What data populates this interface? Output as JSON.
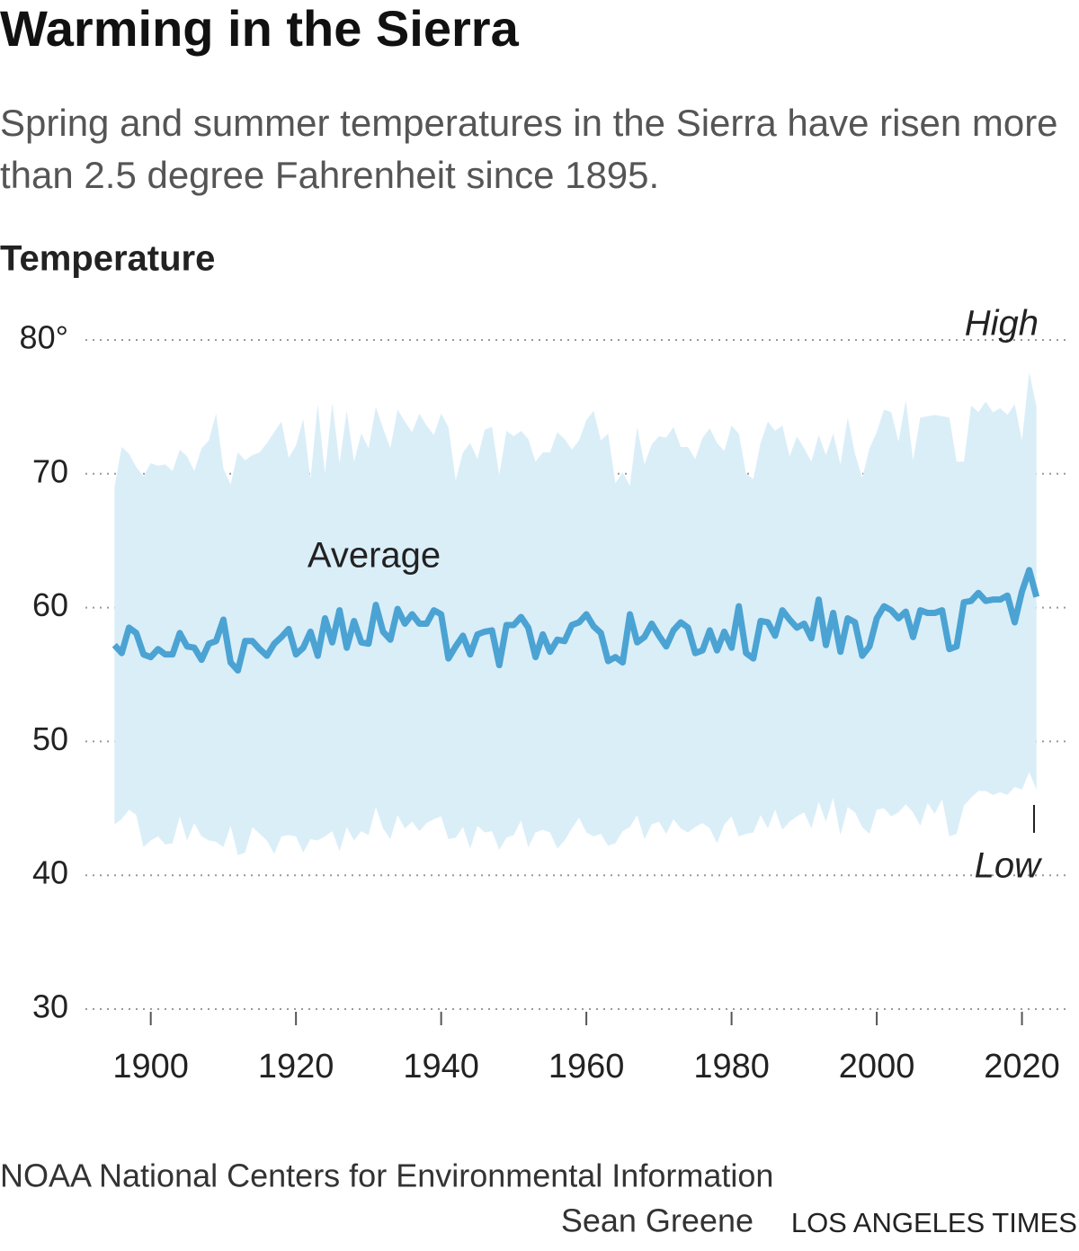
{
  "chart_data": {
    "type": "band-line",
    "title": "Warming in the Sierra",
    "subtitle": "Spring and summer temperatures in the Sierra have risen more than 2.5 degree Fahrenheit since 1895.",
    "y_label": "Temperature",
    "source": "NOAA National Centers for Environmental Information",
    "credit": "Sean Greene",
    "publisher": "LOS ANGELES TIMES",
    "annotation": "Average",
    "band_color": "#daeef8",
    "grid": true,
    "xlim": [
      1891,
      2026
    ],
    "xticks": [
      1900,
      1920,
      1940,
      1960,
      1980,
      2000,
      2020
    ],
    "ylim": [
      30,
      80
    ],
    "yticks": [
      {
        "value": 80,
        "label": "80°"
      },
      70,
      60,
      50,
      40,
      30
    ],
    "x": [
      1895,
      1896,
      1897,
      1898,
      1899,
      1900,
      1901,
      1902,
      1903,
      1904,
      1905,
      1906,
      1907,
      1908,
      1909,
      1910,
      1911,
      1912,
      1913,
      1914,
      1915,
      1916,
      1917,
      1918,
      1919,
      1920,
      1921,
      1922,
      1923,
      1924,
      1925,
      1926,
      1927,
      1928,
      1929,
      1930,
      1931,
      1932,
      1933,
      1934,
      1935,
      1936,
      1937,
      1938,
      1939,
      1940,
      1941,
      1942,
      1943,
      1944,
      1945,
      1946,
      1947,
      1948,
      1949,
      1950,
      1951,
      1952,
      1953,
      1954,
      1955,
      1956,
      1957,
      1958,
      1959,
      1960,
      1961,
      1962,
      1963,
      1964,
      1965,
      1966,
      1967,
      1968,
      1969,
      1970,
      1971,
      1972,
      1973,
      1974,
      1975,
      1976,
      1977,
      1978,
      1979,
      1980,
      1981,
      1982,
      1983,
      1984,
      1985,
      1986,
      1987,
      1988,
      1989,
      1990,
      1991,
      1992,
      1993,
      1994,
      1995,
      1996,
      1997,
      1998,
      1999,
      2000,
      2001,
      2002,
      2003,
      2004,
      2005,
      2006,
      2007,
      2008,
      2009,
      2010,
      2011,
      2012,
      2013,
      2014,
      2015,
      2016,
      2017,
      2018,
      2019,
      2020,
      2021,
      2022
    ],
    "series": [
      {
        "name": "High",
        "color": "#daeef8",
        "values": [
          69.0,
          72.0,
          71.5,
          70.5,
          69.8,
          70.8,
          70.6,
          70.7,
          70.2,
          71.8,
          71.3,
          70.2,
          71.9,
          72.5,
          74.5,
          70.4,
          69.2,
          71.6,
          71.0,
          71.4,
          71.6,
          72.3,
          73.1,
          73.9,
          71.2,
          72.1,
          74.1,
          69.6,
          75.2,
          70.0,
          75.3,
          70.8,
          74.7,
          70.9,
          73.0,
          71.9,
          75.0,
          73.4,
          71.9,
          74.8,
          73.9,
          73.1,
          74.5,
          73.6,
          72.9,
          74.5,
          73.5,
          69.5,
          71.6,
          72.3,
          71.1,
          73.3,
          73.5,
          69.9,
          73.2,
          72.8,
          73.2,
          72.6,
          70.9,
          71.6,
          71.6,
          73.1,
          72.6,
          71.8,
          72.5,
          74.0,
          74.7,
          72.5,
          73.0,
          69.3,
          70.1,
          69.1,
          73.5,
          70.7,
          72.2,
          72.8,
          72.7,
          73.5,
          72.0,
          72.0,
          71.1,
          72.7,
          73.4,
          72.3,
          71.7,
          73.6,
          73.0,
          70.0,
          69.6,
          72.3,
          73.9,
          73.2,
          73.6,
          71.3,
          72.8,
          71.9,
          70.9,
          72.9,
          71.4,
          73.0,
          70.7,
          74.2,
          71.5,
          69.7,
          71.9,
          73.1,
          74.8,
          74.6,
          72.4,
          75.5,
          71.0,
          74.2,
          74.3,
          74.4,
          74.3,
          74.2,
          70.9,
          70.9,
          75.1,
          74.6,
          75.4,
          74.6,
          74.9,
          74.4,
          75.2,
          72.5,
          77.6,
          75.0
        ]
      },
      {
        "name": "Average",
        "color": "#4ba3d3",
        "values": [
          57.2,
          56.6,
          58.5,
          58.1,
          56.5,
          56.3,
          56.9,
          56.5,
          56.5,
          58.1,
          57.1,
          57.0,
          56.1,
          57.3,
          57.5,
          59.1,
          55.9,
          55.3,
          57.5,
          57.5,
          56.9,
          56.4,
          57.3,
          57.8,
          58.4,
          56.5,
          57.0,
          58.2,
          56.4,
          59.2,
          57.4,
          59.8,
          57.0,
          59.0,
          57.4,
          57.3,
          60.2,
          58.2,
          57.6,
          59.9,
          58.8,
          59.5,
          58.8,
          58.8,
          59.8,
          59.5,
          56.2,
          57.1,
          57.9,
          56.5,
          58.0,
          58.2,
          58.3,
          55.7,
          58.7,
          58.7,
          59.3,
          58.5,
          56.3,
          58.0,
          56.7,
          57.6,
          57.5,
          58.7,
          58.9,
          59.5,
          58.6,
          58.1,
          56.0,
          56.3,
          55.9,
          59.5,
          57.4,
          57.8,
          58.8,
          57.9,
          57.1,
          58.3,
          58.9,
          58.5,
          56.6,
          56.8,
          58.3,
          56.8,
          58.2,
          57.0,
          60.1,
          56.6,
          56.2,
          59.0,
          58.9,
          57.9,
          59.8,
          59.1,
          58.5,
          58.8,
          57.7,
          60.6,
          57.2,
          59.6,
          56.7,
          59.2,
          58.9,
          56.4,
          57.1,
          59.2,
          60.1,
          59.8,
          59.2,
          59.7,
          57.8,
          59.8,
          59.6,
          59.6,
          59.8,
          56.9,
          57.1,
          60.4,
          60.5,
          61.1,
          60.5,
          60.6,
          60.6,
          60.9,
          58.9,
          61.2,
          62.8,
          60.8
        ]
      },
      {
        "name": "Low",
        "color": "#daeef8",
        "values": [
          43.8,
          44.2,
          44.9,
          44.5,
          42.1,
          42.6,
          42.9,
          42.3,
          42.4,
          44.4,
          42.6,
          43.9,
          42.9,
          42.6,
          42.5,
          42.1,
          43.7,
          41.5,
          41.7,
          43.6,
          43.1,
          42.6,
          41.6,
          42.9,
          43.0,
          42.9,
          41.7,
          42.7,
          42.6,
          42.9,
          43.3,
          41.8,
          43.6,
          42.6,
          43.3,
          43.0,
          45.1,
          43.5,
          42.7,
          44.5,
          43.5,
          44.0,
          43.3,
          43.9,
          44.2,
          44.4,
          42.7,
          42.8,
          43.6,
          42.0,
          43.7,
          43.2,
          43.3,
          41.9,
          42.8,
          43.0,
          44.1,
          42.1,
          43.2,
          43.4,
          43.2,
          42.0,
          42.6,
          43.5,
          44.3,
          43.2,
          42.9,
          43.1,
          42.2,
          42.4,
          43.3,
          43.6,
          44.5,
          42.7,
          43.8,
          44.0,
          43.1,
          44.2,
          43.5,
          43.2,
          43.6,
          43.9,
          43.5,
          42.4,
          43.8,
          44.4,
          42.9,
          43.1,
          43.2,
          44.5,
          43.5,
          44.9,
          43.4,
          44.0,
          44.4,
          44.7,
          43.5,
          45.5,
          44.0,
          45.8,
          43.0,
          45.1,
          44.7,
          43.6,
          43.1,
          44.9,
          45.0,
          44.4,
          44.7,
          45.3,
          44.7,
          43.7,
          45.4,
          44.6,
          45.7,
          42.9,
          43.1,
          45.2,
          45.8,
          46.3,
          46.3,
          46.0,
          46.2,
          46.0,
          46.6,
          46.4,
          47.7,
          46.4
        ]
      }
    ]
  }
}
